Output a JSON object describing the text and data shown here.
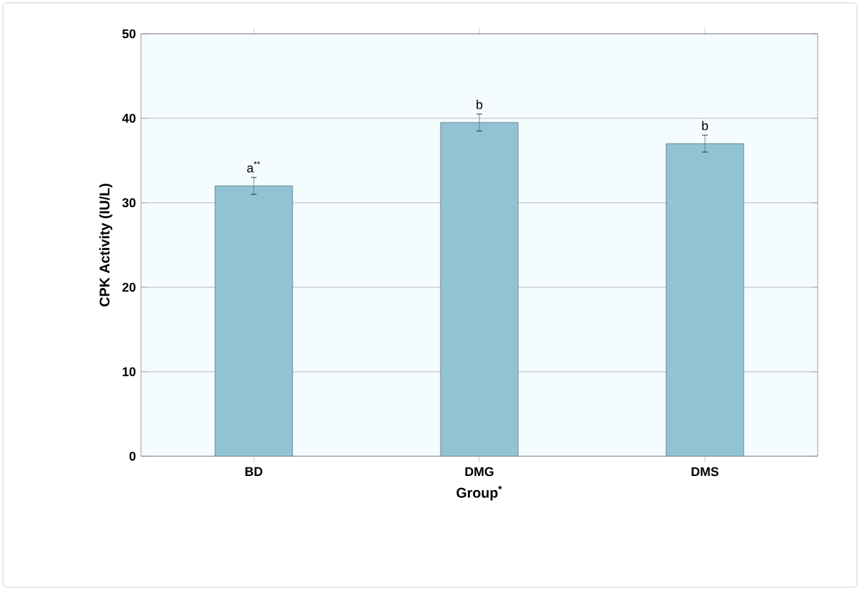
{
  "chart_data": {
    "type": "bar",
    "xlabel": "Group$^{*}$",
    "ylabel": "CPK Activity (IU/L)",
    "categories": [
      "BD",
      "DMG",
      "DMS"
    ],
    "values": [
      32,
      39.5,
      37
    ],
    "errors": [
      1,
      1,
      1
    ],
    "color": "#92c3d5",
    "ylim": [
      0,
      50
    ],
    "yticks": [
      0,
      10,
      20,
      30,
      40,
      50
    ],
    "grid": "y",
    "annotations": [
      {
        "text": "a$^{**}$",
        "x": "BD",
        "y": 33
      },
      {
        "text": "b",
        "x": "DMG",
        "y": 40.5
      },
      {
        "text": "b",
        "x": "DMS",
        "y": 38
      }
    ]
  }
}
